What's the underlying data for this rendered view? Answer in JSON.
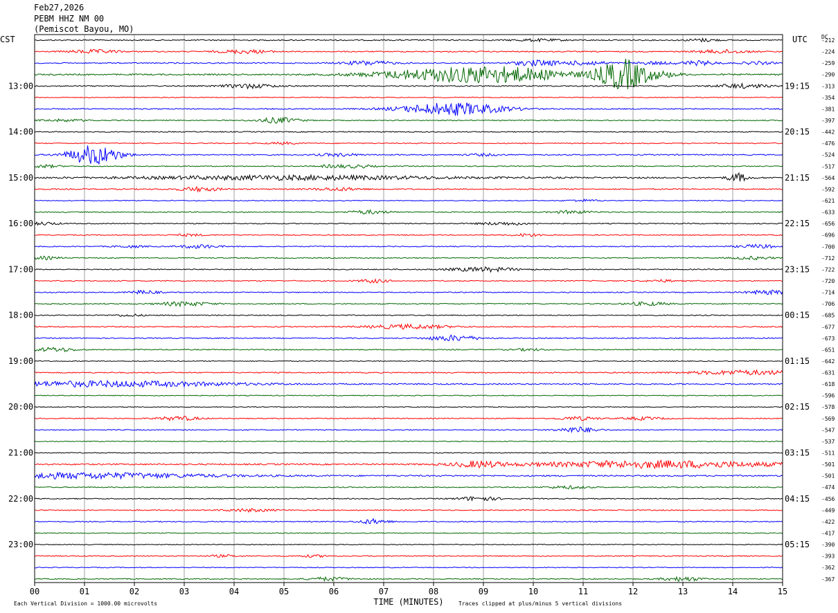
{
  "header": {
    "date": "Feb27,2026",
    "station": "PEBM HHZ NM 00",
    "location": "(Pemiscot Bayou, MO)"
  },
  "footer": {
    "division_note": "Each Vertical Division = 1000.00 microvolts",
    "clip_note": "Traces clipped at plus/minus 5 vertical divisions"
  },
  "chart_data": {
    "type": "line",
    "title": "",
    "xlabel": "TIME (MINUTES)",
    "ylabel_left": "CST",
    "ylabel_right": "UTC",
    "dc_label": "DC",
    "xlim": [
      0,
      15
    ],
    "x_ticks": [
      "00",
      "01",
      "02",
      "03",
      "04",
      "05",
      "06",
      "07",
      "08",
      "09",
      "10",
      "11",
      "12",
      "13",
      "14",
      "15"
    ],
    "grid": true,
    "trace_colors": [
      "#000000",
      "#ff0000",
      "#0000ff",
      "#006600"
    ],
    "cst_labels": [
      {
        "row": 4,
        "label": "13:00"
      },
      {
        "row": 8,
        "label": "14:00"
      },
      {
        "row": 12,
        "label": "15:00"
      },
      {
        "row": 16,
        "label": "16:00"
      },
      {
        "row": 20,
        "label": "17:00"
      },
      {
        "row": 24,
        "label": "18:00"
      },
      {
        "row": 28,
        "label": "19:00"
      },
      {
        "row": 32,
        "label": "20:00"
      },
      {
        "row": 36,
        "label": "21:00"
      },
      {
        "row": 40,
        "label": "22:00"
      },
      {
        "row": 44,
        "label": "23:00"
      }
    ],
    "utc_labels": [
      {
        "row": 4,
        "label": "19:15"
      },
      {
        "row": 8,
        "label": "20:15"
      },
      {
        "row": 12,
        "label": "21:15"
      },
      {
        "row": 16,
        "label": "22:15"
      },
      {
        "row": 20,
        "label": "23:15"
      },
      {
        "row": 24,
        "label": "00:15"
      },
      {
        "row": 28,
        "label": "01:15"
      },
      {
        "row": 32,
        "label": "02:15"
      },
      {
        "row": 36,
        "label": "03:15"
      },
      {
        "row": 40,
        "label": "04:15"
      },
      {
        "row": 44,
        "label": "05:15"
      }
    ],
    "dc_offsets": [
      "-212",
      "-224",
      "-259",
      "-290",
      "-313",
      "-354",
      "-381",
      "-397",
      "-442",
      "-476",
      "-524",
      "-517",
      "-564",
      "-592",
      "-621",
      "-633",
      "-656",
      "-696",
      "-700",
      "-712",
      "-722",
      "-720",
      "-714",
      "-706",
      "-685",
      "-677",
      "-673",
      "-651",
      "-642",
      "-631",
      "-618",
      "-596",
      "-578",
      "-569",
      "-547",
      "-537",
      "-511",
      "-501",
      "-501",
      "-474",
      "-456",
      "-449",
      "-422",
      "-417",
      "-390",
      "-393",
      "-362",
      "-367"
    ],
    "traces": [
      {
        "row": 0,
        "noise": 0.8,
        "events": [
          [
            13.4,
            2,
            0.3
          ],
          [
            10.1,
            1.5,
            0.5
          ]
        ]
      },
      {
        "row": 1,
        "noise": 0.8,
        "events": [
          [
            1.2,
            2.5,
            0.5
          ],
          [
            4.2,
            2.5,
            0.5
          ],
          [
            13.8,
            2.5,
            0.5
          ]
        ]
      },
      {
        "row": 2,
        "noise": 0.8,
        "events": [
          [
            6.7,
            3,
            0.5
          ],
          [
            10.1,
            4,
            0.5
          ],
          [
            11.1,
            3,
            0.4
          ],
          [
            12.4,
            2,
            0.3
          ],
          [
            13.3,
            3,
            0.4
          ],
          [
            14.5,
            2,
            0.3
          ]
        ]
      },
      {
        "row": 3,
        "noise": 1,
        "events": [
          [
            8.3,
            8,
            1.5
          ],
          [
            9.6,
            7,
            1.2
          ],
          [
            11.8,
            22,
            0.5
          ],
          [
            12.6,
            3,
            0.4
          ]
        ]
      },
      {
        "row": 4,
        "noise": 0.8,
        "events": [
          [
            4.3,
            3,
            0.5
          ],
          [
            14.2,
            3,
            0.5
          ]
        ]
      },
      {
        "row": 5,
        "noise": 0.6,
        "events": []
      },
      {
        "row": 6,
        "noise": 0.8,
        "events": [
          [
            8.4,
            9,
            1
          ]
        ]
      },
      {
        "row": 7,
        "noise": 0.7,
        "events": [
          [
            0.6,
            1.5,
            0.5
          ],
          [
            4.9,
            4,
            0.4
          ]
        ]
      },
      {
        "row": 8,
        "noise": 0.7,
        "events": []
      },
      {
        "row": 9,
        "noise": 0.7,
        "events": [
          [
            5.0,
            1.5,
            0.3
          ]
        ]
      },
      {
        "row": 10,
        "noise": 0.8,
        "events": [
          [
            1.2,
            14,
            0.5
          ],
          [
            6.1,
            2,
            0.4
          ],
          [
            9.0,
            1.5,
            0.3
          ]
        ]
      },
      {
        "row": 11,
        "noise": 0.7,
        "events": [
          [
            0.2,
            2,
            0.3
          ],
          [
            6.0,
            2,
            0.3
          ],
          [
            6.5,
            2,
            0.3
          ]
        ]
      },
      {
        "row": 12,
        "noise": 1,
        "events": [
          [
            5.2,
            3,
            3
          ],
          [
            14.1,
            6,
            0.2
          ]
        ]
      },
      {
        "row": 13,
        "noise": 0.8,
        "events": [
          [
            3.3,
            3,
            0.4
          ],
          [
            6.1,
            2,
            0.5
          ]
        ]
      },
      {
        "row": 14,
        "noise": 0.6,
        "events": [
          [
            11.0,
            1.5,
            0.3
          ]
        ]
      },
      {
        "row": 15,
        "noise": 0.7,
        "events": [
          [
            6.7,
            2.5,
            0.4
          ],
          [
            10.8,
            2,
            0.4
          ]
        ]
      },
      {
        "row": 16,
        "noise": 0.7,
        "events": [
          [
            0.2,
            2,
            0.3
          ],
          [
            9.4,
            2,
            0.5
          ]
        ]
      },
      {
        "row": 17,
        "noise": 0.7,
        "events": [
          [
            3.1,
            1.5,
            0.3
          ],
          [
            9.9,
            2,
            0.3
          ]
        ]
      },
      {
        "row": 18,
        "noise": 0.7,
        "events": [
          [
            1.9,
            1.5,
            0.3
          ],
          [
            3.3,
            2.5,
            0.4
          ],
          [
            14.5,
            2.5,
            0.4
          ]
        ]
      },
      {
        "row": 19,
        "noise": 0.7,
        "events": [
          [
            0.2,
            2,
            0.3
          ],
          [
            14.4,
            2,
            0.4
          ]
        ]
      },
      {
        "row": 20,
        "noise": 0.7,
        "events": [
          [
            9.0,
            3,
            0.7
          ]
        ]
      },
      {
        "row": 21,
        "noise": 0.7,
        "events": [
          [
            6.8,
            2.5,
            0.3
          ],
          [
            12.6,
            1.5,
            0.3
          ]
        ]
      },
      {
        "row": 22,
        "noise": 0.7,
        "events": [
          [
            2.2,
            2.5,
            0.3
          ],
          [
            14.7,
            3,
            0.4
          ]
        ]
      },
      {
        "row": 23,
        "noise": 0.7,
        "events": [
          [
            3.0,
            3,
            0.5
          ],
          [
            12.3,
            2.5,
            0.4
          ]
        ]
      },
      {
        "row": 24,
        "noise": 0.7,
        "events": [
          [
            1.9,
            1.5,
            0.3
          ]
        ]
      },
      {
        "row": 25,
        "noise": 0.8,
        "events": [
          [
            7.5,
            3,
            0.8
          ]
        ]
      },
      {
        "row": 26,
        "noise": 0.7,
        "events": [
          [
            8.4,
            4,
            0.5
          ]
        ]
      },
      {
        "row": 27,
        "noise": 0.7,
        "events": [
          [
            0.4,
            3,
            0.4
          ],
          [
            9.9,
            1.5,
            0.3
          ]
        ]
      },
      {
        "row": 28,
        "noise": 0.6,
        "events": []
      },
      {
        "row": 29,
        "noise": 0.8,
        "events": [
          [
            14.3,
            3,
            1.2
          ]
        ]
      },
      {
        "row": 30,
        "noise": 0.9,
        "events": [
          [
            1.5,
            4,
            2.5
          ]
        ]
      },
      {
        "row": 31,
        "noise": 0.6,
        "events": []
      },
      {
        "row": 32,
        "noise": 0.6,
        "events": []
      },
      {
        "row": 33,
        "noise": 0.7,
        "events": [
          [
            2.9,
            3,
            0.4
          ],
          [
            10.9,
            2.5,
            0.4
          ],
          [
            12.2,
            2,
            0.4
          ]
        ]
      },
      {
        "row": 34,
        "noise": 0.7,
        "events": [
          [
            10.9,
            4,
            0.4
          ]
        ]
      },
      {
        "row": 35,
        "noise": 0.6,
        "events": []
      },
      {
        "row": 36,
        "noise": 0.6,
        "events": []
      },
      {
        "row": 37,
        "noise": 1,
        "events": [
          [
            8.9,
            4,
            0.5
          ],
          [
            12.5,
            5,
            2.5
          ]
        ]
      },
      {
        "row": 38,
        "noise": 1,
        "events": [
          [
            1.0,
            4,
            2.5
          ]
        ]
      },
      {
        "row": 39,
        "noise": 0.7,
        "events": [
          [
            10.7,
            2,
            0.4
          ]
        ]
      },
      {
        "row": 40,
        "noise": 0.7,
        "events": [
          [
            8.9,
            3,
            0.4
          ]
        ]
      },
      {
        "row": 41,
        "noise": 0.7,
        "events": [
          [
            4.3,
            2,
            0.5
          ]
        ]
      },
      {
        "row": 42,
        "noise": 0.7,
        "events": [
          [
            6.8,
            3.5,
            0.3
          ]
        ]
      },
      {
        "row": 43,
        "noise": 0.6,
        "events": []
      },
      {
        "row": 44,
        "noise": 0.6,
        "events": []
      },
      {
        "row": 45,
        "noise": 0.7,
        "events": [
          [
            3.8,
            1.5,
            0.3
          ],
          [
            5.6,
            1.5,
            0.3
          ]
        ]
      },
      {
        "row": 46,
        "noise": 0.6,
        "events": []
      },
      {
        "row": 47,
        "noise": 0.7,
        "events": [
          [
            5.9,
            2.5,
            0.4
          ],
          [
            13.0,
            3,
            0.4
          ]
        ]
      }
    ]
  }
}
